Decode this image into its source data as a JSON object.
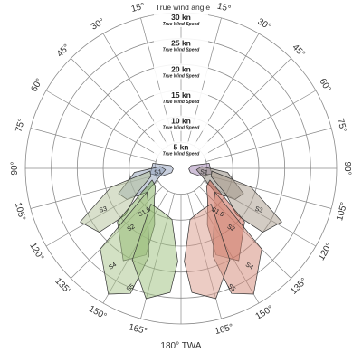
{
  "title": "True wind angle",
  "angle_labels": [
    {
      "deg": 15,
      "side": "left",
      "text": "15°"
    },
    {
      "deg": 15,
      "side": "right",
      "text": "15°"
    },
    {
      "deg": 30,
      "side": "left",
      "text": "30°"
    },
    {
      "deg": 30,
      "side": "right",
      "text": "30°"
    },
    {
      "deg": 45,
      "side": "left",
      "text": "45°"
    },
    {
      "deg": 45,
      "side": "right",
      "text": "45°"
    },
    {
      "deg": 60,
      "side": "left",
      "text": "60°"
    },
    {
      "deg": 60,
      "side": "right",
      "text": "60°"
    },
    {
      "deg": 75,
      "side": "left",
      "text": "75°"
    },
    {
      "deg": 75,
      "side": "right",
      "text": "75°"
    },
    {
      "deg": 90,
      "side": "left",
      "text": "90°"
    },
    {
      "deg": 90,
      "side": "right",
      "text": "90°"
    },
    {
      "deg": 105,
      "side": "left",
      "text": "105°"
    },
    {
      "deg": 105,
      "side": "right",
      "text": "105°"
    },
    {
      "deg": 120,
      "side": "left",
      "text": "120°"
    },
    {
      "deg": 120,
      "side": "right",
      "text": "120°"
    },
    {
      "deg": 135,
      "side": "left",
      "text": "135°"
    },
    {
      "deg": 135,
      "side": "right",
      "text": "135°"
    },
    {
      "deg": 150,
      "side": "left",
      "text": "150°"
    },
    {
      "deg": 150,
      "side": "right",
      "text": "150°"
    },
    {
      "deg": 165,
      "side": "left",
      "text": "165°"
    },
    {
      "deg": 165,
      "side": "right",
      "text": "165°"
    }
  ],
  "bottom_label": "180° TWA",
  "speed_rings": [
    {
      "speed": 5,
      "label": "5 kn",
      "sub": "True Wind Speed"
    },
    {
      "speed": 10,
      "label": "10 kn",
      "sub": "True Wind Speed"
    },
    {
      "speed": 15,
      "label": "15 kn",
      "sub": "True Wind Speed"
    },
    {
      "speed": 20,
      "label": "20 kn",
      "sub": "True Wind Speed"
    },
    {
      "speed": 25,
      "label": "25 kn",
      "sub": "True Wind Speed"
    },
    {
      "speed": 30,
      "label": "30 kn",
      "sub": "True Wind Speed"
    }
  ],
  "max_speed": 30,
  "colors": {
    "port": "#7fae5c",
    "port_light": "#b3cc9a",
    "starboard": "#c75a45",
    "starboard_light": "#d9998a",
    "upwind_blue": "#9aa8c2",
    "upwind_purple": "#a78db8",
    "mid_grey": "#8c8478"
  },
  "sail_zones": [
    {
      "name": "S1",
      "side": "left",
      "color": "#9aa8c2",
      "opacity": 0.55,
      "pts": [
        [
          75,
          2
        ],
        [
          80,
          5.5
        ],
        [
          100,
          6
        ],
        [
          112,
          4
        ],
        [
          115,
          2
        ],
        [
          95,
          1.5
        ]
      ]
    },
    {
      "name": "S2",
      "side": "left",
      "color": "#8fa0b8",
      "opacity": 0.5,
      "pts": [
        [
          85,
          4
        ],
        [
          95,
          9
        ],
        [
          112,
          13
        ],
        [
          120,
          12
        ],
        [
          125,
          8
        ],
        [
          115,
          5
        ],
        [
          95,
          3
        ]
      ]
    },
    {
      "name": "S3",
      "side": "left",
      "color": "#b3c29a",
      "opacity": 0.5,
      "pts": [
        [
          95,
          6
        ],
        [
          105,
          14
        ],
        [
          118,
          22
        ],
        [
          128,
          20
        ],
        [
          130,
          14
        ],
        [
          120,
          10
        ],
        [
          105,
          6
        ]
      ]
    },
    {
      "name": "S2",
      "side": "left",
      "color": "#7fae5c",
      "opacity": 0.5,
      "pts": [
        [
          112,
          6
        ],
        [
          130,
          16
        ],
        [
          148,
          21
        ],
        [
          158,
          18
        ],
        [
          155,
          12
        ],
        [
          140,
          8
        ],
        [
          125,
          6
        ]
      ]
    },
    {
      "name": "S4",
      "side": "left",
      "color": "#a7c48a",
      "opacity": 0.5,
      "pts": [
        [
          125,
          8
        ],
        [
          135,
          22
        ],
        [
          150,
          28
        ],
        [
          158,
          26
        ],
        [
          160,
          18
        ],
        [
          148,
          12
        ],
        [
          135,
          9
        ]
      ]
    },
    {
      "name": "S5",
      "side": "left",
      "color": "#9cbf7c",
      "opacity": 0.5,
      "pts": [
        [
          140,
          9
        ],
        [
          152,
          20
        ],
        [
          165,
          26
        ],
        [
          175,
          24
        ],
        [
          178,
          18
        ],
        [
          170,
          10
        ],
        [
          155,
          9
        ]
      ]
    },
    {
      "name": "S1",
      "side": "right",
      "color": "#a78db8",
      "opacity": 0.55,
      "pts": [
        [
          75,
          2
        ],
        [
          80,
          5.5
        ],
        [
          100,
          6
        ],
        [
          112,
          4
        ],
        [
          115,
          2
        ],
        [
          95,
          1.5
        ]
      ]
    },
    {
      "name": "S2",
      "side": "right",
      "color": "#8c8478",
      "opacity": 0.5,
      "pts": [
        [
          85,
          4
        ],
        [
          95,
          9
        ],
        [
          112,
          13
        ],
        [
          120,
          12
        ],
        [
          125,
          8
        ],
        [
          115,
          5
        ],
        [
          95,
          3
        ]
      ]
    },
    {
      "name": "S3",
      "side": "right",
      "color": "#a89a8a",
      "opacity": 0.5,
      "pts": [
        [
          95,
          6
        ],
        [
          105,
          14
        ],
        [
          118,
          22
        ],
        [
          128,
          20
        ],
        [
          130,
          14
        ],
        [
          120,
          10
        ],
        [
          105,
          6
        ]
      ]
    },
    {
      "name": "S2",
      "side": "right",
      "color": "#c75a45",
      "opacity": 0.5,
      "pts": [
        [
          112,
          6
        ],
        [
          130,
          16
        ],
        [
          148,
          21
        ],
        [
          158,
          18
        ],
        [
          155,
          12
        ],
        [
          140,
          8
        ],
        [
          125,
          6
        ]
      ]
    },
    {
      "name": "S4",
      "side": "right",
      "color": "#d28674",
      "opacity": 0.5,
      "pts": [
        [
          125,
          8
        ],
        [
          135,
          22
        ],
        [
          150,
          28
        ],
        [
          158,
          26
        ],
        [
          160,
          18
        ],
        [
          148,
          12
        ],
        [
          135,
          9
        ]
      ]
    },
    {
      "name": "S5",
      "side": "right",
      "color": "#d9998a",
      "opacity": 0.5,
      "pts": [
        [
          140,
          9
        ],
        [
          152,
          20
        ],
        [
          165,
          26
        ],
        [
          175,
          24
        ],
        [
          178,
          18
        ],
        [
          170,
          10
        ],
        [
          155,
          9
        ]
      ]
    }
  ],
  "sail_labels": [
    {
      "text": "S1",
      "side": "left",
      "deg": 100,
      "speed": 4.5
    },
    {
      "text": "S1",
      "side": "right",
      "deg": 100,
      "speed": 4.5
    },
    {
      "text": "S3",
      "side": "left",
      "deg": 118,
      "speed": 17
    },
    {
      "text": "S3",
      "side": "right",
      "deg": 118,
      "speed": 17
    },
    {
      "text": "S1.5",
      "side": "left",
      "deg": 140,
      "speed": 11
    },
    {
      "text": "S1.5",
      "side": "right",
      "deg": 140,
      "speed": 11
    },
    {
      "text": "S2",
      "side": "left",
      "deg": 140,
      "speed": 15
    },
    {
      "text": "S2",
      "side": "right",
      "deg": 140,
      "speed": 15
    },
    {
      "text": "S4",
      "side": "left",
      "deg": 145,
      "speed": 23
    },
    {
      "text": "S4",
      "side": "right",
      "deg": 145,
      "speed": 23
    },
    {
      "text": "S5",
      "side": "left",
      "deg": 157,
      "speed": 25
    },
    {
      "text": "S5",
      "side": "right",
      "deg": 157,
      "speed": 25
    }
  ]
}
